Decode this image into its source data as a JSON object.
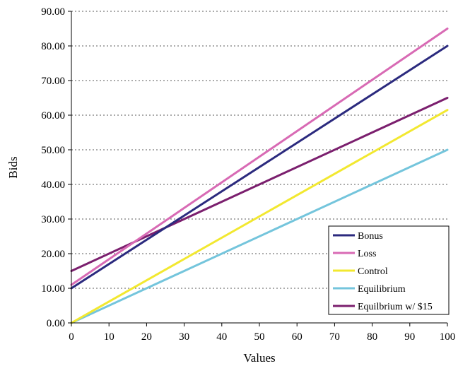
{
  "chart_data": {
    "type": "line",
    "xlabel": "Values",
    "ylabel": "Bids",
    "xlim": [
      0,
      100
    ],
    "ylim": [
      0,
      90
    ],
    "x_ticks": [
      "0",
      "10",
      "20",
      "30",
      "40",
      "50",
      "60",
      "70",
      "80",
      "90",
      "100"
    ],
    "y_ticks": [
      "0.00",
      "10.00",
      "20.00",
      "30.00",
      "40.00",
      "50.00",
      "60.00",
      "70.00",
      "80.00",
      "90.00"
    ],
    "grid": "horizontal dotted",
    "legend_position": "bottom-right",
    "series": [
      {
        "name": "Bonus",
        "color": "#2b2a7e",
        "x": [
          0,
          100
        ],
        "y": [
          10,
          80
        ]
      },
      {
        "name": "Loss",
        "color": "#d86ab4",
        "x": [
          0,
          100
        ],
        "y": [
          11,
          85
        ]
      },
      {
        "name": "Control",
        "color": "#f2e830",
        "x": [
          0,
          100
        ],
        "y": [
          0,
          61.5
        ]
      },
      {
        "name": "Equilibrium",
        "color": "#74c5dc",
        "x": [
          0,
          100
        ],
        "y": [
          0,
          50
        ]
      },
      {
        "name": "Equilbrium w/ $15",
        "color": "#7b1f6e",
        "x": [
          0,
          100
        ],
        "y": [
          15,
          65
        ]
      }
    ]
  }
}
